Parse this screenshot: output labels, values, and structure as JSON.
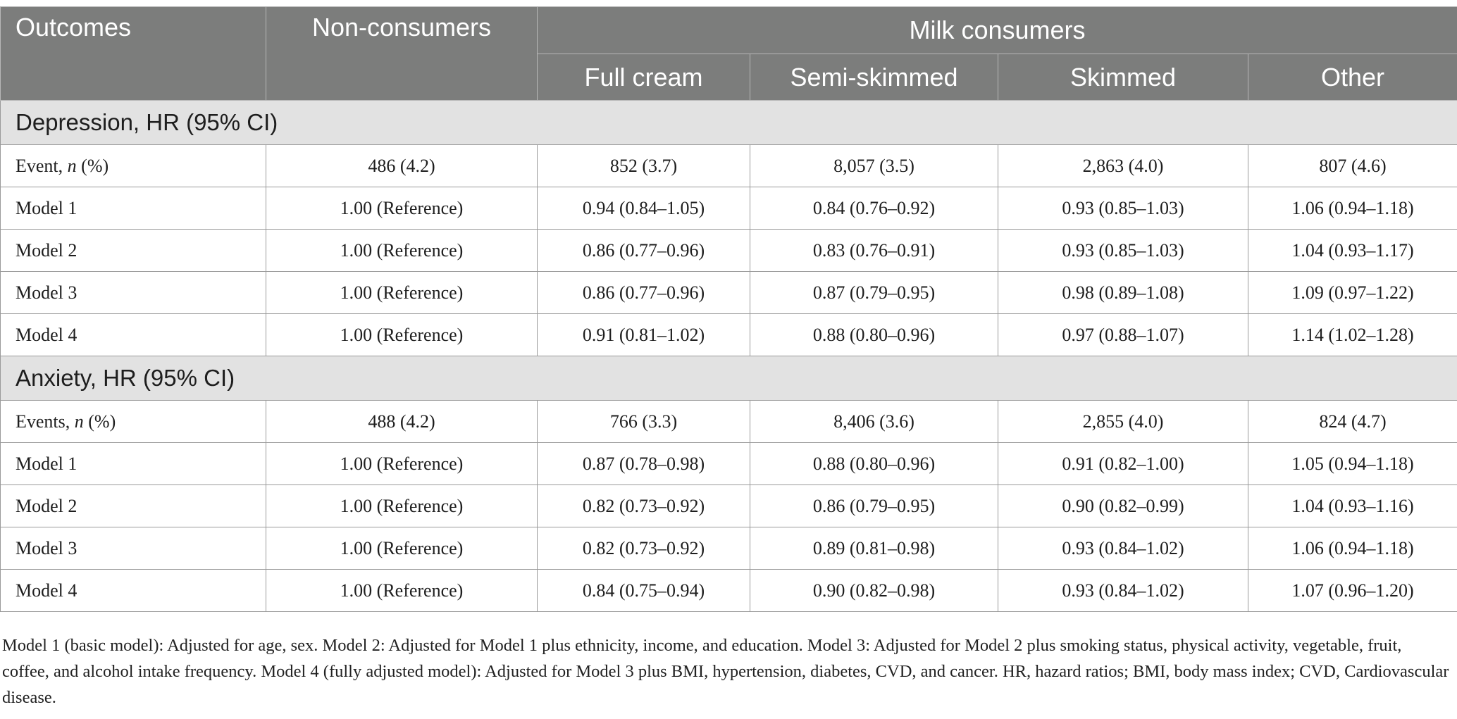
{
  "header": {
    "outcomes": "Outcomes",
    "non_consumers": "Non-consumers",
    "milk_consumers": "Milk consumers",
    "subcolumns": [
      "Full cream",
      "Semi-skimmed",
      "Skimmed",
      "Other"
    ]
  },
  "sections": [
    {
      "title": "Depression, HR (95% CI)",
      "rows": [
        {
          "label_pre": "Event, ",
          "label_n": "n",
          "label_post": " (%)",
          "cells": [
            "486 (4.2)",
            "852 (3.7)",
            "8,057 (3.5)",
            "2,863 (4.0)",
            "807 (4.6)"
          ]
        },
        {
          "label_pre": "Model 1",
          "label_n": "",
          "label_post": "",
          "cells": [
            "1.00 (Reference)",
            "0.94 (0.84–1.05)",
            "0.84 (0.76–0.92)",
            "0.93 (0.85–1.03)",
            "1.06 (0.94–1.18)"
          ]
        },
        {
          "label_pre": "Model 2",
          "label_n": "",
          "label_post": "",
          "cells": [
            "1.00 (Reference)",
            "0.86 (0.77–0.96)",
            "0.83 (0.76–0.91)",
            "0.93 (0.85–1.03)",
            "1.04 (0.93–1.17)"
          ]
        },
        {
          "label_pre": "Model 3",
          "label_n": "",
          "label_post": "",
          "cells": [
            "1.00 (Reference)",
            "0.86 (0.77–0.96)",
            "0.87 (0.79–0.95)",
            "0.98 (0.89–1.08)",
            "1.09 (0.97–1.22)"
          ]
        },
        {
          "label_pre": "Model 4",
          "label_n": "",
          "label_post": "",
          "cells": [
            "1.00 (Reference)",
            "0.91 (0.81–1.02)",
            "0.88 (0.80–0.96)",
            "0.97 (0.88–1.07)",
            "1.14 (1.02–1.28)"
          ]
        }
      ]
    },
    {
      "title": "Anxiety, HR (95% CI)",
      "rows": [
        {
          "label_pre": "Events, ",
          "label_n": "n",
          "label_post": " (%)",
          "cells": [
            "488 (4.2)",
            "766 (3.3)",
            "8,406 (3.6)",
            "2,855 (4.0)",
            "824 (4.7)"
          ]
        },
        {
          "label_pre": "Model 1",
          "label_n": "",
          "label_post": "",
          "cells": [
            "1.00 (Reference)",
            "0.87 (0.78–0.98)",
            "0.88 (0.80–0.96)",
            "0.91 (0.82–1.00)",
            "1.05 (0.94–1.18)"
          ]
        },
        {
          "label_pre": "Model 2",
          "label_n": "",
          "label_post": "",
          "cells": [
            "1.00 (Reference)",
            "0.82 (0.73–0.92)",
            "0.86 (0.79–0.95)",
            "0.90 (0.82–0.99)",
            "1.04 (0.93–1.16)"
          ]
        },
        {
          "label_pre": "Model 3",
          "label_n": "",
          "label_post": "",
          "cells": [
            "1.00 (Reference)",
            "0.82 (0.73–0.92)",
            "0.89 (0.81–0.98)",
            "0.93 (0.84–1.02)",
            "1.06 (0.94–1.18)"
          ]
        },
        {
          "label_pre": "Model 4",
          "label_n": "",
          "label_post": "",
          "cells": [
            "1.00 (Reference)",
            "0.84 (0.75–0.94)",
            "0.90 (0.82–0.98)",
            "0.93 (0.84–1.02)",
            "1.07 (0.96–1.20)"
          ]
        }
      ]
    }
  ],
  "footnote": "Model 1 (basic model): Adjusted for age, sex. Model 2: Adjusted for Model 1 plus ethnicity, income, and education. Model 3: Adjusted for Model 2 plus smoking status, physical activity, vegetable, fruit, coffee, and alcohol intake frequency. Model 4 (fully adjusted model): Adjusted for Model 3 plus BMI, hypertension, diabetes, CVD, and cancer. HR, hazard ratios; BMI, body mass index; CVD, Cardiovascular disease.",
  "colors": {
    "header_bg": "#7c7d7c",
    "section_bg": "#e2e2e2"
  }
}
